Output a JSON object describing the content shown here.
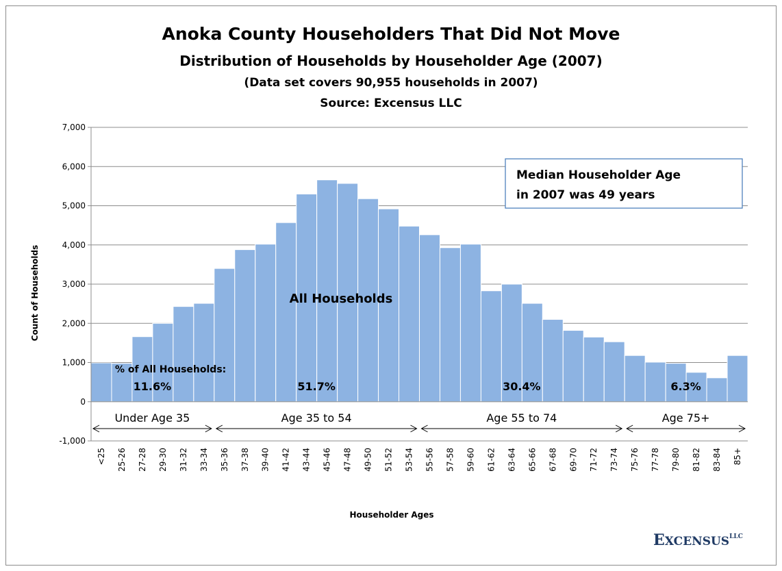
{
  "chart_data": {
    "type": "bar",
    "title": "Anoka County Householders That Did Not Move",
    "subtitle": "Distribution of Households  by Householder  Age (2007)",
    "note": "(Data set covers 90,955 households in 2007)",
    "source": "Source: Excensus LLC",
    "xlabel": "Householder Ages",
    "ylabel": "Count of Households",
    "ylim": [
      -1000,
      7000
    ],
    "yticks": [
      -1000,
      0,
      1000,
      2000,
      3000,
      4000,
      5000,
      6000,
      7000
    ],
    "ytick_labels": [
      "-1,000",
      "0",
      "1,000",
      "2,000",
      "3,000",
      "4,000",
      "5,000",
      "6,000",
      "7,000"
    ],
    "grid": true,
    "categories": [
      "<25",
      "25-26",
      "27-28",
      "29-30",
      "31-32",
      "33-34",
      "35-36",
      "37-38",
      "39-40",
      "41-42",
      "43-44",
      "45-46",
      "47-48",
      "49-50",
      "51-52",
      "53-54",
      "55-56",
      "57-58",
      "59-60",
      "61-62",
      "63-64",
      "65-66",
      "67-68",
      "69-70",
      "71-72",
      "73-74",
      "75-76",
      "77-78",
      "79-80",
      "81-82",
      "83-84",
      "85+"
    ],
    "series": [
      {
        "name": "All Households",
        "color": "#8db3e2",
        "values": [
          990,
          980,
          1660,
          2000,
          2430,
          2510,
          3400,
          3880,
          4020,
          4570,
          5300,
          5660,
          5570,
          5180,
          4920,
          4480,
          4260,
          3930,
          4020,
          2830,
          3000,
          2510,
          2100,
          1820,
          1650,
          1530,
          1180,
          1010,
          980,
          750,
          610,
          1180
        ]
      }
    ],
    "series_label": "All Households",
    "pct_heading": "% of All Households:",
    "groups": [
      {
        "label": "Under Age 35",
        "pct": "11.6%",
        "from": 0,
        "to": 5
      },
      {
        "label": "Age 35 to 54",
        "pct": "51.7%",
        "from": 6,
        "to": 15
      },
      {
        "label": "Age 55 to 74",
        "pct": "30.4%",
        "from": 16,
        "to": 25
      },
      {
        "label": "Age 75+",
        "pct": "6.3%",
        "from": 26,
        "to": 31
      }
    ],
    "annotation_lines": [
      "Median Householder Age",
      "in 2007 was 49 years"
    ]
  },
  "logo": {
    "text_big1": "E",
    "text_small": "XCENSUS",
    "text_llc": "LLC"
  }
}
